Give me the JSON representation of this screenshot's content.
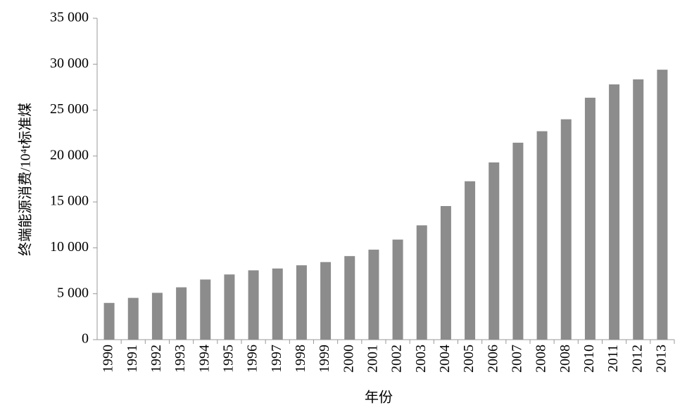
{
  "chart_data": {
    "type": "bar",
    "x_label": "年份",
    "y_label": "终端能源消费/10⁴t标准煤",
    "categories": [
      "1990",
      "1991",
      "1992",
      "1993",
      "1994",
      "1995",
      "1996",
      "1997",
      "1998",
      "1999",
      "2000",
      "2001",
      "2002",
      "2003",
      "2004",
      "2005",
      "2006",
      "2007",
      "2008",
      "2008",
      "2010",
      "2011",
      "2012",
      "2013"
    ],
    "values": [
      4000,
      4550,
      5100,
      5700,
      6550,
      7100,
      7550,
      7750,
      8100,
      8450,
      9100,
      9800,
      10900,
      12450,
      14550,
      17250,
      19300,
      21450,
      22700,
      24000,
      26350,
      27800,
      28350,
      29400
    ],
    "color": "#8c8c8c",
    "ylim": [
      0,
      35000
    ],
    "yticks": [
      0,
      {
        "value": 5000,
        "label": "5 000"
      },
      {
        "value": 10000,
        "label": "10 000"
      },
      {
        "value": 15000,
        "label": "15 000"
      },
      {
        "value": 20000,
        "label": "20 000"
      },
      {
        "value": 25000,
        "label": "25 000"
      },
      {
        "value": 30000,
        "label": "30 000"
      },
      {
        "value": 35000,
        "label": "35 000"
      }
    ],
    "grid": false
  }
}
